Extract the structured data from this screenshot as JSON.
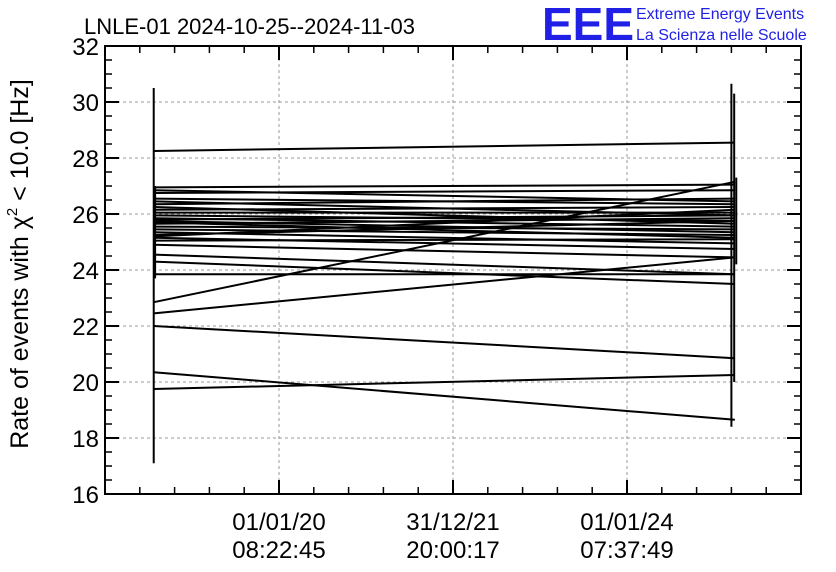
{
  "title": "LNLE-01 2024-10-25--2024-11-03",
  "logo": {
    "mark": "EEE",
    "line1": "Extreme Energy Events",
    "line2": "La Scienza nelle Scuole",
    "color": "#1f1fe6"
  },
  "chart_data": {
    "type": "line",
    "title": "LNLE-01 2024-10-25--2024-11-03",
    "ylabel_parts": {
      "pre": "Rate of events with ",
      "chi": "χ",
      "sup": "2",
      "post": " < 10.0 [Hz]"
    },
    "ylim": [
      16,
      32
    ],
    "yticks": [
      16,
      18,
      20,
      22,
      24,
      26,
      28,
      30,
      32
    ],
    "xlim": [
      0,
      1
    ],
    "xticks": [
      {
        "pos": 0.25,
        "line1": "01/01/20",
        "line2": "08:22:45"
      },
      {
        "pos": 0.5,
        "line1": "31/12/21",
        "line2": "20:00:17"
      },
      {
        "pos": 0.75,
        "line1": "01/01/24",
        "line2": "07:37:49"
      }
    ],
    "grid": true,
    "x_start": 0.07,
    "x_end": 0.905,
    "segments": [
      [
        28.25,
        28.55
      ],
      [
        26.95,
        27.05
      ],
      [
        26.85,
        26.45
      ],
      [
        26.75,
        26.85
      ],
      [
        26.55,
        26.35
      ],
      [
        26.45,
        25.95
      ],
      [
        26.35,
        26.55
      ],
      [
        26.25,
        25.65
      ],
      [
        26.15,
        26.25
      ],
      [
        26.05,
        26.05
      ],
      [
        25.95,
        25.75
      ],
      [
        25.85,
        25.55
      ],
      [
        25.8,
        25.95
      ],
      [
        25.75,
        25.35
      ],
      [
        25.7,
        25.15
      ],
      [
        25.65,
        25.85
      ],
      [
        25.55,
        25.45
      ],
      [
        25.45,
        25.25
      ],
      [
        25.35,
        24.95
      ],
      [
        25.25,
        25.75
      ],
      [
        25.2,
        26.15
      ],
      [
        25.15,
        24.75
      ],
      [
        25.05,
        25.1
      ],
      [
        24.9,
        24.45
      ],
      [
        24.55,
        23.85
      ],
      [
        24.3,
        23.5
      ],
      [
        23.85,
        23.85
      ],
      [
        22.85,
        27.15
      ],
      [
        22.45,
        24.45
      ],
      [
        22.0,
        20.85
      ],
      [
        20.35,
        18.65
      ],
      [
        19.75,
        20.25
      ]
    ],
    "errorbars": [
      {
        "x": 0.07,
        "lo": 17.1,
        "hi": 30.5
      },
      {
        "x": 0.072,
        "lo": 23.7,
        "hi": 27.0
      },
      {
        "x": 0.9,
        "lo": 18.4,
        "hi": 30.65
      },
      {
        "x": 0.904,
        "lo": 20.0,
        "hi": 30.3
      },
      {
        "x": 0.907,
        "lo": 24.2,
        "hi": 27.3
      }
    ]
  }
}
